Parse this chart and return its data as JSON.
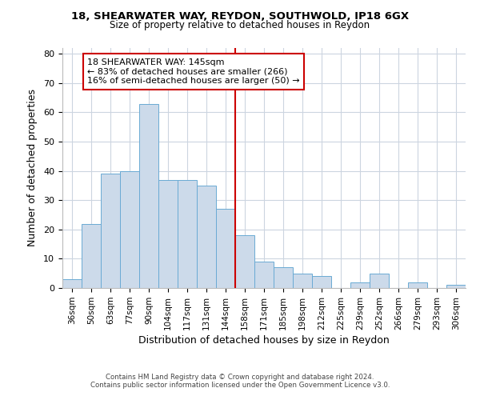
{
  "title1": "18, SHEARWATER WAY, REYDON, SOUTHWOLD, IP18 6GX",
  "title2": "Size of property relative to detached houses in Reydon",
  "xlabel": "Distribution of detached houses by size in Reydon",
  "ylabel": "Number of detached properties",
  "categories": [
    "36sqm",
    "50sqm",
    "63sqm",
    "77sqm",
    "90sqm",
    "104sqm",
    "117sqm",
    "131sqm",
    "144sqm",
    "158sqm",
    "171sqm",
    "185sqm",
    "198sqm",
    "212sqm",
    "225sqm",
    "239sqm",
    "252sqm",
    "266sqm",
    "279sqm",
    "293sqm",
    "306sqm"
  ],
  "values": [
    3,
    22,
    39,
    40,
    63,
    37,
    37,
    35,
    27,
    18,
    9,
    7,
    5,
    4,
    0,
    2,
    5,
    0,
    2,
    0,
    1
  ],
  "bar_color": "#ccdaea",
  "bar_edge_color": "#6aaad4",
  "vline_color": "#cc0000",
  "annotation_title": "18 SHEARWATER WAY: 145sqm",
  "annotation_line1": "← 83% of detached houses are smaller (266)",
  "annotation_line2": "16% of semi-detached houses are larger (50) →",
  "annotation_box_color": "#ffffff",
  "annotation_box_edge": "#cc0000",
  "ylim": [
    0,
    82
  ],
  "yticks": [
    0,
    10,
    20,
    30,
    40,
    50,
    60,
    70,
    80
  ],
  "footer1": "Contains HM Land Registry data © Crown copyright and database right 2024.",
  "footer2": "Contains public sector information licensed under the Open Government Licence v3.0.",
  "background_color": "#ffffff",
  "grid_color": "#ccd5e0"
}
